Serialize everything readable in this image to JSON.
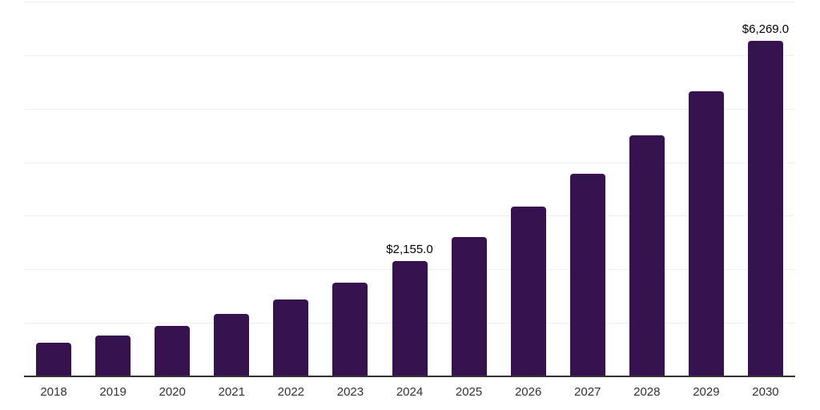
{
  "chart_data": {
    "type": "bar",
    "title": "",
    "xlabel": "",
    "ylabel": "",
    "categories": [
      "2018",
      "2019",
      "2020",
      "2021",
      "2022",
      "2023",
      "2024",
      "2025",
      "2026",
      "2027",
      "2028",
      "2029",
      "2030"
    ],
    "values": [
      625,
      760,
      948,
      1172,
      1432,
      1755,
      2155,
      2604,
      3171,
      3782,
      4499,
      5326,
      6269
    ],
    "data_labels": [
      {
        "category": "2024",
        "text": "$2,155.0"
      },
      {
        "category": "2030",
        "text": "$6,269.0"
      }
    ],
    "ylim": [
      0,
      7000
    ],
    "grid_step": 1000,
    "grid": "horizontal",
    "y_tick_labels": "none",
    "legend": "none"
  },
  "colors": {
    "bar": "#36124E",
    "axis": "#333333",
    "gridline": "#f0f0f0",
    "tick_label": "#333333",
    "data_label": "#000000",
    "background": "#ffffff"
  }
}
